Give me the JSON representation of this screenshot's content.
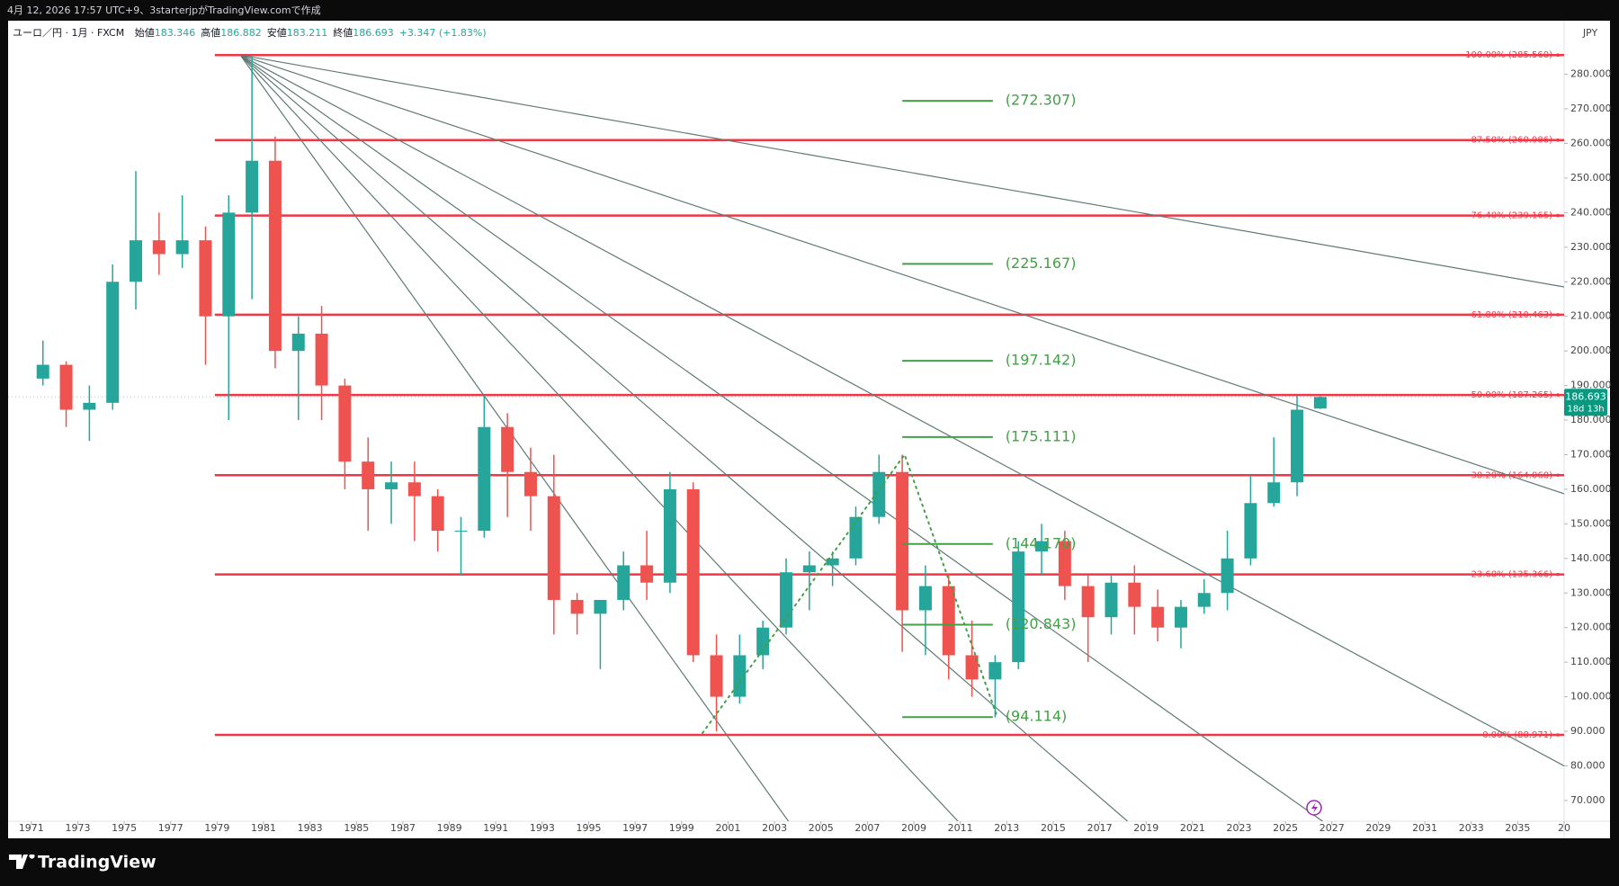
{
  "page": {
    "caption": "4月 12, 2026 17:57 UTC+9、3starterjpがTradingView.comで作成",
    "brand": "TradingView"
  },
  "chart_data": {
    "type": "candlestick",
    "symbol": "ユーロ／円 · 1月 · FXCM",
    "ohlc_legend": [
      {
        "label": "始値",
        "value": "183.346"
      },
      {
        "label": "高値",
        "value": "186.882"
      },
      {
        "label": "安値",
        "value": "183.211"
      },
      {
        "label": "終値",
        "value": "186.693"
      }
    ],
    "change": "+3.347 (+1.83%)",
    "currency": "JPY",
    "last_price": 186.693,
    "countdown": "18d 13h",
    "up_color": "#26a69a",
    "down_color": "#ef5350",
    "x": [
      1971,
      1972,
      1973,
      1974,
      1975,
      1976,
      1977,
      1978,
      1979,
      1980,
      1981,
      1982,
      1983,
      1984,
      1985,
      1986,
      1987,
      1988,
      1989,
      1990,
      1991,
      1992,
      1993,
      1994,
      1995,
      1996,
      1997,
      1998,
      1999,
      2000,
      2001,
      2002,
      2003,
      2004,
      2005,
      2006,
      2007,
      2008,
      2009,
      2010,
      2011,
      2012,
      2013,
      2014,
      2015,
      2016,
      2017,
      2018,
      2019,
      2020,
      2021,
      2022,
      2023,
      2024,
      2025,
      2026
    ],
    "open": [
      192,
      196,
      183,
      185,
      220,
      232,
      228,
      232,
      210,
      240,
      255,
      200,
      205,
      190,
      168,
      160,
      162,
      158,
      148,
      148,
      178,
      165,
      158,
      128,
      124,
      128,
      138,
      133,
      160,
      112,
      100,
      112,
      120,
      136,
      138,
      140,
      152,
      165,
      125,
      132,
      112,
      105,
      110,
      142,
      145,
      132,
      123,
      133,
      126,
      120,
      126,
      130,
      140,
      156,
      162,
      183.346
    ],
    "high": [
      203,
      197,
      190,
      225,
      252,
      240,
      245,
      236,
      245,
      285.56,
      262,
      210,
      213,
      192,
      175,
      168,
      168,
      160,
      152,
      187,
      182,
      172,
      170,
      130,
      126,
      142,
      148,
      165,
      162,
      118,
      118,
      122,
      140,
      142,
      142,
      155,
      170,
      170,
      138,
      135,
      122,
      112,
      145,
      150,
      148,
      135,
      135,
      138,
      131,
      128,
      134,
      148,
      164,
      175,
      187,
      186.882
    ],
    "low": [
      190,
      178,
      174,
      183,
      212,
      222,
      224,
      196,
      180,
      215,
      195,
      180,
      180,
      160,
      148,
      150,
      145,
      142,
      135,
      146,
      152,
      148,
      118,
      118,
      108,
      125,
      128,
      130,
      110,
      90,
      98,
      108,
      118,
      125,
      132,
      138,
      150,
      113,
      112,
      105,
      100,
      94,
      108,
      135,
      128,
      110,
      118,
      118,
      116,
      114,
      124,
      125,
      138,
      155,
      158,
      183.211
    ],
    "close": [
      196,
      183,
      185,
      220,
      232,
      228,
      232,
      210,
      240,
      255,
      200,
      205,
      190,
      168,
      160,
      162,
      158,
      148,
      148,
      178,
      165,
      158,
      128,
      124,
      128,
      138,
      133,
      160,
      112,
      100,
      112,
      120,
      136,
      138,
      140,
      152,
      165,
      125,
      132,
      112,
      105,
      110,
      142,
      145,
      132,
      123,
      133,
      126,
      120,
      126,
      130,
      140,
      156,
      162,
      183,
      186.693
    ],
    "xlim": [
      1970,
      2037
    ],
    "ylim": [
      64,
      295.5
    ],
    "xticks": [
      1971,
      1973,
      1975,
      1977,
      1979,
      1981,
      1983,
      1985,
      1987,
      1989,
      1991,
      1993,
      1995,
      1997,
      1999,
      2001,
      2003,
      2005,
      2007,
      2009,
      2011,
      2013,
      2015,
      2017,
      2019,
      2021,
      2023,
      2025,
      2027,
      2029,
      2031,
      2033,
      2035,
      {
        "value": 2037,
        "label": "20"
      }
    ],
    "yticks": [
      {
        "value": 70,
        "label": "70.000"
      },
      {
        "value": 80,
        "label": "80.000"
      },
      {
        "value": 90,
        "label": "90.000"
      },
      {
        "value": 100,
        "label": "100.000"
      },
      {
        "value": 110,
        "label": "110.000"
      },
      {
        "value": 120,
        "label": "120.000"
      },
      {
        "value": 130,
        "label": "130.000"
      },
      {
        "value": 140,
        "label": "140.000"
      },
      {
        "value": 150,
        "label": "150.000"
      },
      {
        "value": 160,
        "label": "160.000"
      },
      {
        "value": 170,
        "label": "170.000"
      },
      {
        "value": 180,
        "label": "180.000"
      },
      {
        "value": 190,
        "label": "190.000"
      },
      {
        "value": 200,
        "label": "200.000"
      },
      {
        "value": 210,
        "label": "210.000"
      },
      {
        "value": 220,
        "label": "220.000"
      },
      {
        "value": 230,
        "label": "230.000"
      },
      {
        "value": 240,
        "label": "240.000"
      },
      {
        "value": 250,
        "label": "250.000"
      },
      {
        "value": 260,
        "label": "260.000"
      },
      {
        "value": 270,
        "label": "270.000"
      },
      {
        "value": 280,
        "label": "280.000"
      }
    ],
    "grid": false,
    "fib_x_start": 1978.9,
    "fib_color": "#f23645",
    "fib_levels": [
      {
        "label": "100.00% (285.560)",
        "value": 285.56
      },
      {
        "label": "87.50% (260.986)",
        "value": 260.986
      },
      {
        "label": "76.40% (239.165)",
        "value": 239.165
      },
      {
        "label": "61.80% (210.463)",
        "value": 210.463
      },
      {
        "label": "50.00% (187.265)",
        "value": 187.265
      },
      {
        "label": "38.20% (164.068)",
        "value": 164.068
      },
      {
        "label": "23.60% (135.366)",
        "value": 135.366
      },
      {
        "label": "0.00% (88.971)",
        "value": 88.971
      }
    ],
    "target_x_range": [
      2008.5,
      2012.4
    ],
    "target_color": "#43a047",
    "targets": [
      {
        "label": "(272.307)",
        "value": 272.307
      },
      {
        "label": "(225.167)",
        "value": 225.167
      },
      {
        "label": "(197.142)",
        "value": 197.142
      },
      {
        "label": "(175.111)",
        "value": 175.111
      },
      {
        "label": "(144.170)",
        "value": 144.17
      },
      {
        "label": "(120.843)",
        "value": 120.843
      },
      {
        "label": "(94.114)",
        "value": 94.114
      }
    ],
    "fan_color": "#5f7a76",
    "fan_lines": {
      "origin": {
        "x": 1980.0,
        "y": 285.56
      },
      "ends": [
        {
          "x": 2037,
          "y": 218.5
        },
        {
          "x": 2037,
          "y": 158.7
        },
        {
          "x": 2037,
          "y": 80
        },
        {
          "x": 2026.6,
          "y": 64
        },
        {
          "x": 2018.2,
          "y": 64
        },
        {
          "x": 2010.9,
          "y": 64
        },
        {
          "x": 2003.6,
          "y": 64
        }
      ]
    },
    "trend_path": {
      "x": [
        1999.9,
        2008.6,
        2012.6
      ],
      "y": [
        89.5,
        170,
        94
      ]
    }
  }
}
